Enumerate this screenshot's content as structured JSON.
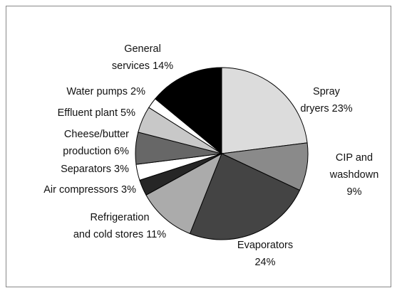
{
  "chart_data": {
    "type": "pie",
    "categories": [
      "Spray\ndryers",
      "CIP and\nwashdown",
      "Evaporators",
      "Refrigeration\nand cold stores",
      "Air compressors",
      "Separators",
      "Cheese/butter\nproduction",
      "Effluent plant",
      "Water pumps",
      "General\nservices"
    ],
    "values": [
      23,
      9,
      24,
      11,
      3,
      3,
      6,
      5,
      2,
      14
    ],
    "value_labels": [
      "23%",
      "9%",
      "24%",
      "11%",
      "3%",
      "3%",
      "6%",
      "5%",
      "2%",
      "14%"
    ],
    "colors": [
      "#dcdcdc",
      "#8a8a8a",
      "#444444",
      "#ababab",
      "#262626",
      "#ffffff",
      "#676767",
      "#c8c8c8",
      "#ffffff",
      "#000000"
    ]
  }
}
